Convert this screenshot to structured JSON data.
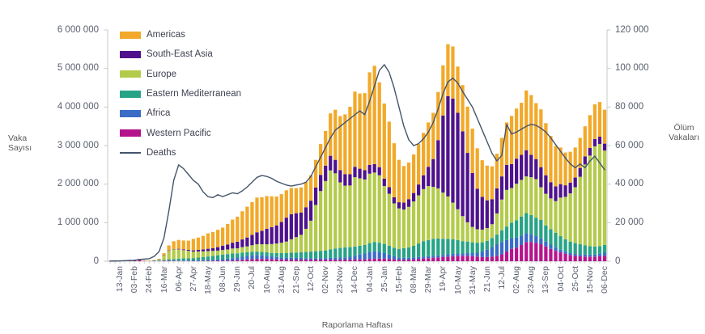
{
  "chart_data": {
    "type": "bar",
    "subtype": "stacked-bars-with-secondary-axis-line",
    "left_axis": {
      "title_lines": [
        "Vaka",
        "Sayısı"
      ],
      "tick_labels": [
        "6 000 000",
        "5 000 000",
        "4 000 000",
        "3 000 000",
        "2 000 000",
        "1 000 000",
        "0"
      ],
      "axis_max_millions": 6,
      "axis_min": 0
    },
    "right_axis": {
      "title_lines": [
        "Ölüm",
        "Vakaları"
      ],
      "tick_labels": [
        "120 000",
        "100 000",
        "80 000",
        "60 000",
        "40 000",
        "20 000",
        "0"
      ],
      "axis_max_thousands": 120,
      "axis_min": 0
    },
    "x_axis": {
      "title": "Raporlama Haftası",
      "num_bars": 102,
      "first_labeled_bar_index": 2,
      "label_every_n_bars": 3,
      "tick_labels": [
        "13-Jan",
        "03-Feb",
        "24-Feb",
        "16-Mar",
        "06-Apr",
        "27-Apr",
        "18-May",
        "08-Jun",
        "29-Jun",
        "20-Jul",
        "10-Aug",
        "31-Aug",
        "21-Sep",
        "12-Oct",
        "02-Nov",
        "23-Nov",
        "14-Dec",
        "04-Jan",
        "25-Jan",
        "15-Feb",
        "08-Mar",
        "29-Mar",
        "19-Apr",
        "10-May",
        "31-May",
        "21-Jun",
        "12-Jul",
        "02-Aug",
        "23-Aug",
        "13-Sep",
        "04-Oct",
        "25-Oct",
        "15-Nov",
        "06-Dec"
      ]
    },
    "values_unit": "million cases per week",
    "stack_order_bottom_to_top": [
      "Western Pacific",
      "Africa",
      "Eastern Mediterranean",
      "Europe",
      "South-East Asia",
      "Americas"
    ],
    "series": [
      {
        "name": "Americas",
        "color": "#F2A929",
        "values": [
          0,
          0,
          0,
          0,
          0,
          0.001,
          0.001,
          0.001,
          0.002,
          0.003,
          0.008,
          0.05,
          0.13,
          0.2,
          0.23,
          0.23,
          0.24,
          0.3,
          0.32,
          0.35,
          0.4,
          0.42,
          0.45,
          0.47,
          0.53,
          0.6,
          0.65,
          0.73,
          0.8,
          0.85,
          0.9,
          0.87,
          0.85,
          0.8,
          0.75,
          0.72,
          0.71,
          0.68,
          0.65,
          0.65,
          0.65,
          0.66,
          0.72,
          0.8,
          0.9,
          1.1,
          1.3,
          1.4,
          1.55,
          1.75,
          1.95,
          1.95,
          2.0,
          2.4,
          2.55,
          2.2,
          1.95,
          1.7,
          1.4,
          1.1,
          0.95,
          0.95,
          1.0,
          1.05,
          1.1,
          1.15,
          1.2,
          1.25,
          1.3,
          1.35,
          1.35,
          1.2,
          1.2,
          1.2,
          1.15,
          1.05,
          0.95,
          0.9,
          0.85,
          0.9,
          1.0,
          1.1,
          1.25,
          1.3,
          1.35,
          1.55,
          1.55,
          1.45,
          1.5,
          1.35,
          1.2,
          1.05,
          0.95,
          0.85,
          0.8,
          0.78,
          0.78,
          0.78,
          0.85,
          0.9,
          0.9,
          0.88
        ]
      },
      {
        "name": "South-East Asia",
        "color": "#4E128C",
        "values": [
          0,
          0,
          0,
          0,
          0,
          0,
          0,
          0,
          0,
          0.001,
          0.002,
          0.002,
          0.01,
          0.01,
          0.015,
          0.02,
          0.025,
          0.03,
          0.04,
          0.05,
          0.06,
          0.07,
          0.09,
          0.11,
          0.13,
          0.15,
          0.17,
          0.2,
          0.23,
          0.27,
          0.31,
          0.35,
          0.4,
          0.44,
          0.47,
          0.54,
          0.62,
          0.65,
          0.62,
          0.58,
          0.56,
          0.52,
          0.45,
          0.42,
          0.4,
          0.38,
          0.35,
          0.32,
          0.3,
          0.29,
          0.27,
          0.25,
          0.24,
          0.23,
          0.22,
          0.21,
          0.19,
          0.17,
          0.16,
          0.16,
          0.18,
          0.2,
          0.22,
          0.28,
          0.36,
          0.5,
          0.72,
          1.25,
          2.0,
          2.6,
          2.7,
          2.5,
          2.2,
          1.8,
          1.4,
          1.05,
          0.85,
          0.72,
          0.65,
          0.65,
          0.6,
          0.65,
          0.62,
          0.65,
          0.65,
          0.68,
          0.58,
          0.52,
          0.52,
          0.48,
          0.42,
          0.38,
          0.35,
          0.3,
          0.28,
          0.25,
          0.23,
          0.21,
          0.2,
          0.19,
          0.19,
          0.18
        ]
      },
      {
        "name": "Europe",
        "color": "#B3CB4B",
        "values": [
          0,
          0,
          0,
          0,
          0,
          0,
          0,
          0.001,
          0.002,
          0.01,
          0.035,
          0.12,
          0.22,
          0.25,
          0.24,
          0.21,
          0.19,
          0.17,
          0.16,
          0.15,
          0.14,
          0.13,
          0.12,
          0.12,
          0.12,
          0.13,
          0.13,
          0.14,
          0.15,
          0.17,
          0.19,
          0.2,
          0.21,
          0.23,
          0.25,
          0.27,
          0.3,
          0.35,
          0.4,
          0.45,
          0.6,
          0.8,
          1.2,
          1.55,
          1.8,
          2.05,
          1.95,
          1.7,
          1.6,
          1.6,
          1.8,
          1.75,
          1.7,
          1.8,
          1.8,
          1.75,
          1.5,
          1.35,
          1.15,
          1.05,
          1.0,
          1.05,
          1.15,
          1.25,
          1.35,
          1.4,
          1.35,
          1.3,
          1.2,
          1.1,
          0.95,
          0.8,
          0.65,
          0.5,
          0.4,
          0.35,
          0.33,
          0.33,
          0.36,
          0.55,
          0.8,
          0.95,
          0.9,
          0.95,
          0.95,
          0.95,
          0.98,
          1.0,
          0.85,
          0.82,
          0.8,
          0.82,
          1.0,
          1.1,
          1.25,
          1.45,
          1.75,
          2.1,
          2.35,
          2.6,
          2.65,
          2.45
        ]
      },
      {
        "name": "Eastern Mediterranean",
        "color": "#27A386",
        "values": [
          0,
          0,
          0,
          0,
          0,
          0,
          0,
          0,
          0.001,
          0.004,
          0.01,
          0.02,
          0.03,
          0.04,
          0.05,
          0.06,
          0.06,
          0.06,
          0.07,
          0.08,
          0.09,
          0.1,
          0.11,
          0.12,
          0.12,
          0.12,
          0.11,
          0.11,
          0.1,
          0.09,
          0.09,
          0.09,
          0.09,
          0.09,
          0.1,
          0.11,
          0.12,
          0.13,
          0.14,
          0.15,
          0.16,
          0.17,
          0.18,
          0.19,
          0.2,
          0.22,
          0.24,
          0.25,
          0.26,
          0.25,
          0.24,
          0.23,
          0.22,
          0.23,
          0.24,
          0.24,
          0.24,
          0.23,
          0.22,
          0.22,
          0.25,
          0.27,
          0.3,
          0.35,
          0.4,
          0.42,
          0.44,
          0.44,
          0.42,
          0.4,
          0.38,
          0.35,
          0.32,
          0.3,
          0.28,
          0.26,
          0.24,
          0.23,
          0.23,
          0.25,
          0.3,
          0.35,
          0.4,
          0.45,
          0.5,
          0.52,
          0.5,
          0.48,
          0.48,
          0.42,
          0.4,
          0.38,
          0.35,
          0.32,
          0.3,
          0.28,
          0.26,
          0.24,
          0.22,
          0.21,
          0.2,
          0.2
        ]
      },
      {
        "name": "Africa",
        "color": "#3A6CC6",
        "values": [
          0,
          0,
          0,
          0,
          0,
          0,
          0,
          0,
          0,
          0.001,
          0.001,
          0.005,
          0.01,
          0.01,
          0.01,
          0.012,
          0.012,
          0.015,
          0.018,
          0.02,
          0.025,
          0.03,
          0.035,
          0.04,
          0.05,
          0.06,
          0.07,
          0.08,
          0.09,
          0.1,
          0.1,
          0.09,
          0.08,
          0.07,
          0.06,
          0.055,
          0.05,
          0.05,
          0.045,
          0.045,
          0.04,
          0.04,
          0.04,
          0.04,
          0.04,
          0.045,
          0.05,
          0.055,
          0.06,
          0.07,
          0.09,
          0.12,
          0.15,
          0.18,
          0.19,
          0.17,
          0.14,
          0.11,
          0.08,
          0.06,
          0.05,
          0.05,
          0.05,
          0.05,
          0.05,
          0.05,
          0.05,
          0.05,
          0.05,
          0.06,
          0.06,
          0.06,
          0.06,
          0.07,
          0.08,
          0.1,
          0.14,
          0.19,
          0.25,
          0.3,
          0.32,
          0.3,
          0.28,
          0.26,
          0.24,
          0.23,
          0.2,
          0.17,
          0.15,
          0.13,
          0.11,
          0.09,
          0.07,
          0.06,
          0.05,
          0.05,
          0.05,
          0.05,
          0.05,
          0.05,
          0.06,
          0.08
        ]
      },
      {
        "name": "Western Pacific",
        "color": "#B5158C",
        "values": [
          0.001,
          0.002,
          0.004,
          0.01,
          0.02,
          0.025,
          0.05,
          0.012,
          0.008,
          0.008,
          0.006,
          0.01,
          0.01,
          0.008,
          0.007,
          0.006,
          0.006,
          0.006,
          0.006,
          0.007,
          0.008,
          0.009,
          0.01,
          0.012,
          0.015,
          0.02,
          0.025,
          0.035,
          0.045,
          0.055,
          0.06,
          0.06,
          0.06,
          0.055,
          0.05,
          0.045,
          0.04,
          0.04,
          0.04,
          0.04,
          0.04,
          0.04,
          0.04,
          0.04,
          0.04,
          0.04,
          0.04,
          0.04,
          0.04,
          0.045,
          0.05,
          0.05,
          0.05,
          0.06,
          0.07,
          0.07,
          0.07,
          0.06,
          0.05,
          0.04,
          0.04,
          0.04,
          0.05,
          0.06,
          0.07,
          0.08,
          0.09,
          0.1,
          0.11,
          0.12,
          0.13,
          0.14,
          0.14,
          0.14,
          0.13,
          0.12,
          0.11,
          0.11,
          0.12,
          0.14,
          0.18,
          0.25,
          0.32,
          0.35,
          0.42,
          0.5,
          0.5,
          0.48,
          0.44,
          0.38,
          0.32,
          0.27,
          0.23,
          0.19,
          0.16,
          0.14,
          0.13,
          0.12,
          0.12,
          0.12,
          0.13,
          0.14
        ]
      }
    ],
    "deaths": {
      "name": "Deaths",
      "color": "#44546A",
      "values_unit": "thousand deaths per week",
      "values": [
        0.1,
        0.1,
        0.2,
        0.3,
        0.4,
        0.5,
        0.9,
        1.1,
        1.3,
        2.5,
        5,
        12,
        26,
        42,
        50,
        48,
        45,
        42,
        40,
        36,
        33.5,
        33,
        34.5,
        33.5,
        34.5,
        35.5,
        35,
        36.5,
        38.5,
        41,
        43.5,
        44.5,
        44,
        43,
        41.5,
        40.5,
        39.5,
        39,
        39.5,
        40,
        41,
        44,
        49,
        54,
        59,
        64,
        68,
        70,
        72,
        74,
        76,
        78,
        76,
        83,
        91,
        99,
        102,
        98,
        90,
        80,
        70,
        63,
        60,
        61,
        63.5,
        67,
        72,
        79,
        87,
        93,
        95,
        92.5,
        88,
        84,
        80,
        74,
        68,
        62,
        56,
        52,
        55,
        71,
        66,
        67,
        68.5,
        70,
        71,
        70.5,
        69,
        67,
        64,
        60.5,
        57,
        53.5,
        50.5,
        48.5,
        50.5,
        48.5,
        52,
        54.5,
        51,
        47.5
      ]
    },
    "style": {
      "axis_line_color": "#C9C9C9",
      "minor_tick_color": "#D5D5D5",
      "tick_text_color": "#595F6E",
      "legend_text_color": "#3E4152",
      "background": "#FFFFFF"
    }
  }
}
